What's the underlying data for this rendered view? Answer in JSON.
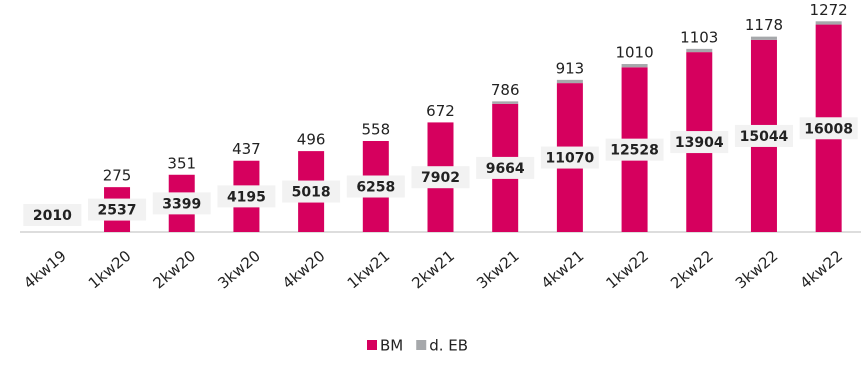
{
  "chart_data": {
    "type": "stacked_bar",
    "categories": [
      "4kw19",
      "1kw20",
      "2kw20",
      "3kw20",
      "4kw20",
      "1kw21",
      "2kw21",
      "3kw21",
      "4kw21",
      "1kw22",
      "2kw22",
      "3kw22",
      "4kw22"
    ],
    "series": [
      {
        "name": "BM",
        "color": "#d6005e",
        "values": [
          null,
          275,
          351,
          437,
          496,
          558,
          672,
          786,
          913,
          1010,
          1103,
          1178,
          1272
        ]
      },
      {
        "name": "d. EB",
        "color": "#a6a8ab",
        "values": [
          null,
          null,
          null,
          null,
          null,
          null,
          null,
          15,
          20,
          20,
          20,
          20,
          20
        ]
      }
    ],
    "box_labels": [
      2010,
      2537,
      3399,
      4195,
      5018,
      6258,
      7902,
      9664,
      11070,
      12528,
      13904,
      15044,
      16008
    ],
    "ylim": [
      0,
      1300
    ]
  }
}
